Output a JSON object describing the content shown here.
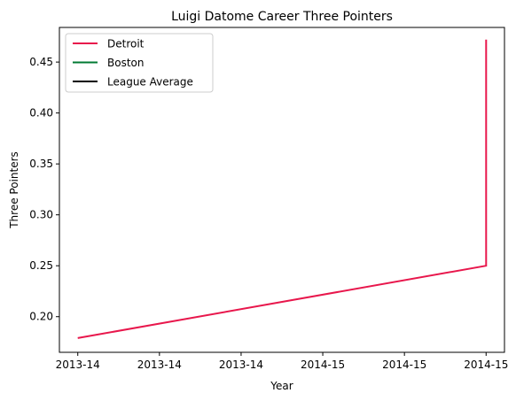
{
  "chart_data": {
    "type": "line",
    "title": "Luigi Datome Career Three Pointers",
    "xlabel": "Year",
    "ylabel": "Three Pointers",
    "x_tick_labels": [
      "2013-14",
      "2013-14",
      "2013-14",
      "2014-15",
      "2014-15",
      "2014-15"
    ],
    "yticks": [
      0.2,
      0.25,
      0.3,
      0.35,
      0.4,
      0.45
    ],
    "ylim": [
      0.165,
      0.484
    ],
    "xlim": [
      -0.045,
      1.045
    ],
    "grid": false,
    "legend_position": "top-left",
    "series": [
      {
        "name": "Detroit",
        "color": "#e8174c",
        "points": [
          [
            0,
            0.179
          ],
          [
            1,
            0.25
          ],
          [
            1,
            0.472
          ]
        ]
      },
      {
        "name": "Boston",
        "color": "#007a33",
        "points": []
      },
      {
        "name": "League Average",
        "color": "#000000",
        "points": []
      }
    ]
  }
}
